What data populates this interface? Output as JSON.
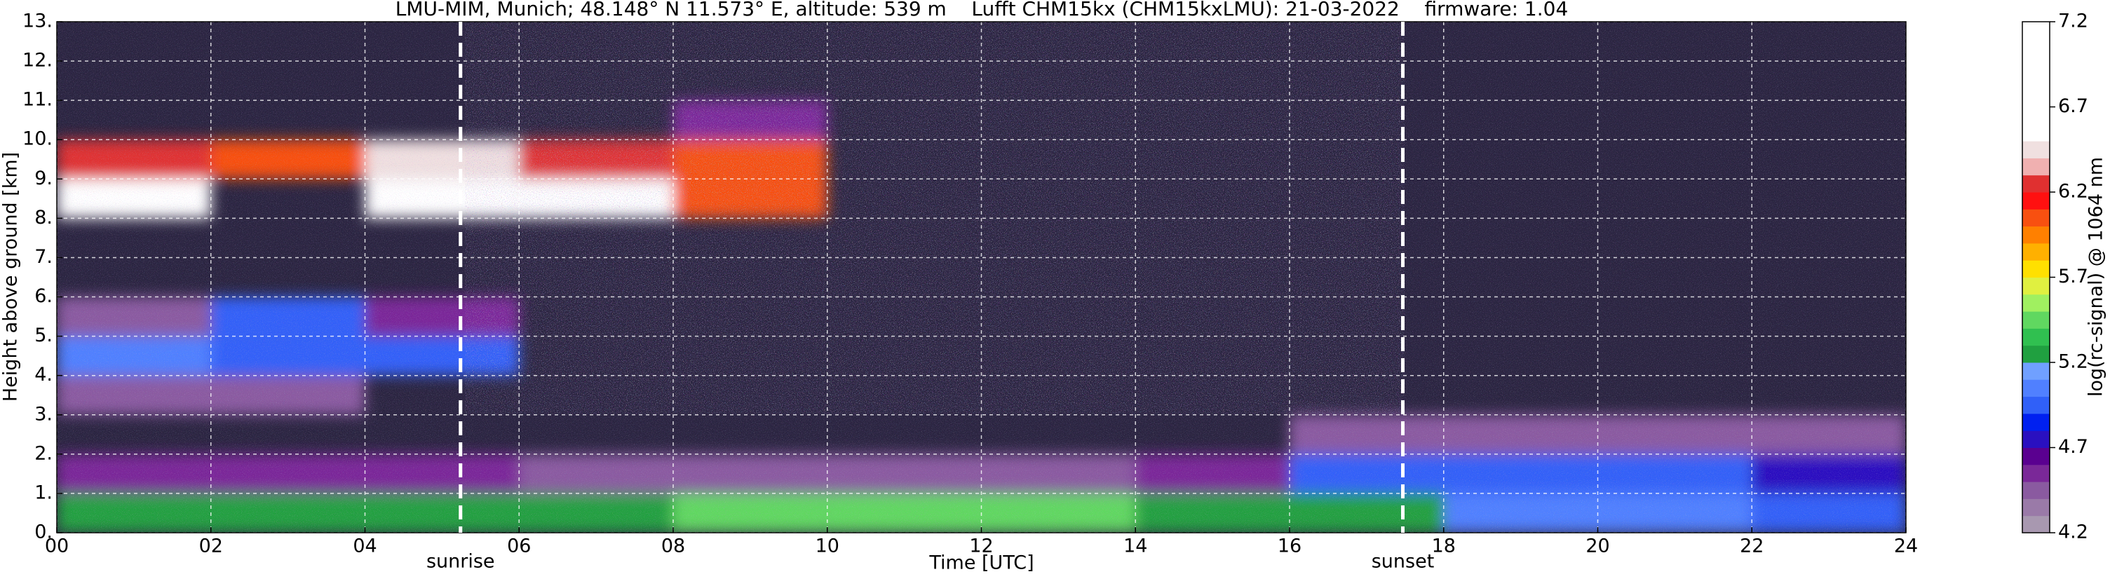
{
  "chart_data": {
    "type": "heatmap",
    "title": "LMU-MIM, Munich; 48.148° N 11.573° E, altitude: 539 m    Lufft CHM15kx (CHM15kxLMU): 21-03-2022    firmware: 1.04",
    "x_label": "Time [UTC]",
    "y_label": "Height above ground [km]",
    "colorbar_label": "log(rc-signal) @ 1064 nm",
    "xbins": [
      0,
      2,
      4,
      6,
      8,
      10,
      12,
      14,
      16,
      18,
      20,
      22,
      24
    ],
    "ybins": [
      0,
      1,
      2,
      3,
      4,
      5,
      6,
      7,
      8,
      9,
      10,
      11,
      12,
      13
    ],
    "z": [
      [
        5.3,
        5.3,
        5.2,
        5.3,
        5.4,
        5.5,
        5.4,
        5.3,
        5.2,
        5.1,
        5.1,
        5.0
      ],
      [
        4.6,
        4.6,
        4.6,
        4.5,
        4.5,
        4.5,
        4.5,
        4.6,
        4.9,
        4.9,
        4.9,
        4.8
      ],
      [
        null,
        null,
        null,
        null,
        null,
        null,
        null,
        null,
        4.5,
        4.4,
        4.4,
        4.4
      ],
      [
        4.4,
        4.4,
        null,
        null,
        null,
        null,
        null,
        null,
        null,
        null,
        null,
        null
      ],
      [
        5.1,
        5.0,
        4.9,
        null,
        null,
        null,
        null,
        null,
        null,
        null,
        null,
        null
      ],
      [
        4.5,
        4.9,
        4.6,
        null,
        null,
        null,
        null,
        null,
        null,
        null,
        null,
        null
      ],
      [
        null,
        null,
        null,
        null,
        null,
        null,
        null,
        null,
        null,
        null,
        null,
        null
      ],
      [
        null,
        null,
        null,
        null,
        null,
        null,
        null,
        null,
        null,
        null,
        null,
        null
      ],
      [
        6.6,
        null,
        6.5,
        6.6,
        6.0,
        null,
        null,
        null,
        null,
        null,
        null,
        null
      ],
      [
        6.3,
        6.1,
        6.4,
        6.2,
        6.1,
        null,
        null,
        null,
        null,
        null,
        null,
        null
      ],
      [
        null,
        null,
        null,
        null,
        4.6,
        null,
        null,
        null,
        null,
        null,
        null,
        null
      ],
      [
        null,
        null,
        null,
        null,
        null,
        null,
        null,
        null,
        null,
        null,
        null,
        null
      ],
      [
        null,
        null,
        null,
        null,
        null,
        null,
        null,
        null,
        null,
        null,
        null,
        null
      ]
    ],
    "xlim": [
      0,
      24
    ],
    "ylim": [
      0,
      13
    ],
    "clim": [
      4.2,
      7.2
    ],
    "xticks": [
      {
        "value": 0,
        "label": "00"
      },
      {
        "value": 2,
        "label": "02"
      },
      {
        "value": 4,
        "label": "04"
      },
      {
        "value": 6,
        "label": "06"
      },
      {
        "value": 8,
        "label": "08"
      },
      10,
      12,
      14,
      16,
      18,
      20,
      22,
      24
    ],
    "yticks": [
      {
        "value": 0,
        "label": "0."
      },
      {
        "value": 1,
        "label": "1."
      },
      {
        "value": 2,
        "label": "2."
      },
      {
        "value": 3,
        "label": "3."
      },
      {
        "value": 4,
        "label": "4."
      },
      {
        "value": 5,
        "label": "5."
      },
      {
        "value": 6,
        "label": "6."
      },
      {
        "value": 7,
        "label": "7."
      },
      {
        "value": 8,
        "label": "8."
      },
      {
        "value": 9,
        "label": "9."
      },
      {
        "value": 10,
        "label": "10."
      },
      {
        "value": 11,
        "label": "11."
      },
      {
        "value": 12,
        "label": "12."
      },
      {
        "value": 13,
        "label": "13."
      }
    ],
    "cticks": [
      4.2,
      4.7,
      5.2,
      5.7,
      6.2,
      6.7,
      7.2
    ],
    "colormap": [
      "#a898b0",
      "#9a7aa8",
      "#8a5aa0",
      "#7a2898",
      "#5a0090",
      "#2a10c0",
      "#0020f0",
      "#3060f8",
      "#5080ff",
      "#70a0ff",
      "#20a040",
      "#30c050",
      "#60d860",
      "#a0f060",
      "#e0f040",
      "#ffe000",
      "#ffb000",
      "#ff8000",
      "#f85010",
      "#ff1010",
      "#e03030",
      "#f0b0b0",
      "#f0e0e0",
      "#ffffff",
      "#ffffff",
      "#ffffff",
      "#ffffff",
      "#ffffff",
      "#ffffff",
      "#ffffff"
    ],
    "grid": true,
    "annotations": [
      {
        "text": "sunrise",
        "x": 5.24
      },
      {
        "text": "sunset",
        "x": 17.47
      }
    ]
  }
}
